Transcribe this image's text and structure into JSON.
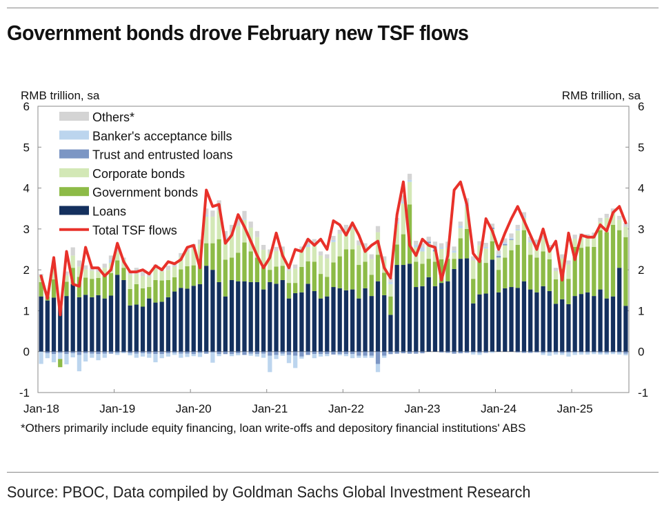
{
  "title": "Government bonds drove February new TSF flows",
  "footnote": "*Others primarily include equity financing, loan write-offs and depository financial institutions' ABS",
  "source": "Source: PBOC, Data compiled by Goldman Sachs Global Investment Research",
  "chart_data": {
    "type": "bar",
    "subtype": "stacked bar with line overlay",
    "y_left_label": "RMB trillion, sa",
    "y_right_label": "RMB trillion, sa",
    "ylim": [
      -1,
      6
    ],
    "yticks": [
      "-1",
      "0",
      "1",
      "2",
      "3",
      "4",
      "5",
      "6"
    ],
    "xtick_labels": [
      "Jan-18",
      "Jan-19",
      "Jan-20",
      "Jan-21",
      "Jan-22",
      "Jan-23",
      "Jan-24",
      "Jan-25"
    ],
    "start_month": "Jan-18",
    "legend_position": "top-left",
    "colors": {
      "others": "#d4d4d4",
      "bankers": "#bcd5ee",
      "trust": "#7c96c4",
      "corporate": "#d3e8b6",
      "government": "#8dbb47",
      "loans": "#14305e",
      "total": "#e8312a"
    },
    "legend": [
      {
        "key": "others",
        "label": "Others*",
        "kind": "bar"
      },
      {
        "key": "bankers",
        "label": "Banker's acceptance bills",
        "kind": "bar"
      },
      {
        "key": "trust",
        "label": "Trust and entrusted loans",
        "kind": "bar"
      },
      {
        "key": "corporate",
        "label": "Corporate bonds",
        "kind": "bar"
      },
      {
        "key": "government",
        "label": "Government bonds",
        "kind": "bar"
      },
      {
        "key": "loans",
        "label": "Loans",
        "kind": "bar"
      },
      {
        "key": "total",
        "label": "Total TSF flows",
        "kind": "line"
      }
    ],
    "series": {
      "loans": [
        1.35,
        1.25,
        1.32,
        1.1,
        1.36,
        1.65,
        1.33,
        1.39,
        1.33,
        1.38,
        1.3,
        1.37,
        1.88,
        1.75,
        1.13,
        1.15,
        1.1,
        1.3,
        1.2,
        1.22,
        1.33,
        1.47,
        1.56,
        1.54,
        1.61,
        1.65,
        2.1,
        2.0,
        1.7,
        1.35,
        1.75,
        1.72,
        1.72,
        1.7,
        1.7,
        1.52,
        1.7,
        1.66,
        1.75,
        1.3,
        1.43,
        1.45,
        1.66,
        1.48,
        1.3,
        1.35,
        1.58,
        1.55,
        1.5,
        1.52,
        1.3,
        1.55,
        1.36,
        1.72,
        1.38,
        0.9,
        2.12,
        2.12,
        2.15,
        1.58,
        1.6,
        1.82,
        1.6,
        1.68,
        1.72,
        2.02,
        2.27,
        2.28,
        1.18,
        1.4,
        1.42,
        2.25,
        1.45,
        1.55,
        1.58,
        1.56,
        1.72,
        1.52,
        1.45,
        1.6,
        1.48,
        1.17,
        1.28,
        1.16,
        1.36,
        1.41,
        1.45,
        1.36,
        1.52,
        1.3,
        1.35,
        2.05,
        1.12
      ],
      "government": [
        0.35,
        0.1,
        0.45,
        -0.2,
        0.35,
        0.4,
        0.5,
        0.42,
        0.45,
        0.42,
        0.55,
        0.55,
        0.35,
        0.3,
        0.4,
        0.5,
        0.45,
        0.28,
        0.55,
        0.52,
        0.42,
        0.35,
        0.45,
        0.55,
        0.5,
        0.62,
        0.55,
        0.65,
        1.05,
        0.9,
        0.55,
        0.7,
        0.95,
        0.75,
        0.6,
        0.55,
        0.3,
        0.42,
        0.35,
        0.38,
        0.25,
        0.62,
        0.55,
        0.72,
        0.6,
        0.48,
        0.6,
        0.78,
        1.0,
        0.98,
        0.82,
        0.65,
        0.52,
        0.65,
        0.55,
        0.45,
        0.5,
        0.75,
        1.45,
        0.62,
        0.55,
        0.45,
        0.6,
        0.58,
        0.55,
        0.25,
        0.5,
        0.72,
        0.6,
        0.85,
        0.75,
        0.45,
        0.55,
        0.75,
        0.9,
        1.05,
        1.25,
        0.85,
        0.85,
        0.85,
        0.78,
        0.6,
        0.75,
        0.62,
        1.2,
        1.13,
        1.12,
        1.2,
        1.45,
        1.62,
        1.75,
        0.92,
        1.68
      ],
      "corporate": [
        0.15,
        0.06,
        0.3,
        0.1,
        0.15,
        0.3,
        0.25,
        0.2,
        0.2,
        0.15,
        0.2,
        0.25,
        0.2,
        0.2,
        0.35,
        0.25,
        0.3,
        0.25,
        0.28,
        0.22,
        0.25,
        0.25,
        0.3,
        0.35,
        0.4,
        0.35,
        0.65,
        0.65,
        0.7,
        0.5,
        0.6,
        0.65,
        0.55,
        0.58,
        0.5,
        0.42,
        0.4,
        0.38,
        0.35,
        0.3,
        0.35,
        0.4,
        0.35,
        0.4,
        0.45,
        0.45,
        0.5,
        0.55,
        0.45,
        0.48,
        0.48,
        0.3,
        0.38,
        0.55,
        0.3,
        0.3,
        0.5,
        0.75,
        0.55,
        0.35,
        0.3,
        0.38,
        0.25,
        0.25,
        0.28,
        0.15,
        0.25,
        0.55,
        0.45,
        0.35,
        0.35,
        0.3,
        0.3,
        0.3,
        0.25,
        0.35,
        0.3,
        0.3,
        0.3,
        0.3,
        0.25,
        0.2,
        0.25,
        0.35,
        0.2,
        0.25,
        0.2,
        0.25,
        0.2,
        0.35,
        0.3,
        0.25,
        0.25
      ],
      "trust": [
        0.0,
        -0.04,
        -0.06,
        -0.03,
        -0.06,
        -0.04,
        -0.08,
        -0.04,
        -0.05,
        -0.06,
        -0.05,
        -0.05,
        -0.03,
        -0.02,
        -0.04,
        -0.05,
        -0.04,
        -0.05,
        -0.06,
        -0.06,
        -0.04,
        -0.03,
        -0.05,
        -0.05,
        -0.06,
        -0.03,
        -0.05,
        -0.02,
        -0.06,
        -0.06,
        -0.06,
        -0.04,
        -0.08,
        -0.05,
        -0.06,
        -0.05,
        -0.1,
        -0.08,
        -0.05,
        -0.08,
        -0.1,
        -0.12,
        -0.08,
        -0.06,
        -0.06,
        -0.06,
        -0.07,
        -0.06,
        -0.06,
        -0.06,
        -0.1,
        -0.1,
        -0.1,
        -0.3,
        -0.1,
        -0.06,
        -0.05,
        -0.04,
        -0.05,
        -0.05,
        -0.04,
        0.04,
        0.04,
        -0.02,
        -0.03,
        -0.05,
        -0.04,
        -0.03,
        -0.02,
        -0.03,
        -0.03,
        0.03,
        0.04,
        0.03,
        0.02,
        -0.02,
        -0.03,
        -0.03,
        -0.02,
        -0.03,
        -0.02,
        -0.02,
        -0.03,
        -0.02,
        -0.02,
        -0.02,
        -0.02,
        -0.02,
        -0.03,
        -0.03,
        -0.02,
        -0.02,
        -0.05
      ],
      "bankers": [
        -0.3,
        -0.12,
        -0.2,
        -0.15,
        -0.25,
        -0.1,
        -0.4,
        -0.2,
        -0.1,
        -0.15,
        -0.1,
        0.08,
        -0.05,
        -0.02,
        -0.05,
        -0.1,
        -0.08,
        -0.1,
        -0.2,
        -0.1,
        -0.08,
        -0.05,
        -0.1,
        -0.08,
        -0.05,
        -0.1,
        0.05,
        -0.25,
        -0.05,
        0.05,
        -0.05,
        -0.05,
        0.02,
        -0.05,
        -0.06,
        -0.1,
        -0.4,
        -0.1,
        -0.05,
        -0.2,
        -0.3,
        -0.05,
        0.05,
        -0.1,
        -0.06,
        -0.05,
        0.05,
        -0.03,
        -0.05,
        -0.1,
        -0.05,
        -0.05,
        -0.05,
        -0.2,
        -0.05,
        0.05,
        0.05,
        0.05,
        0.05,
        0.06,
        0.1,
        0.02,
        0.1,
        0.04,
        0.04,
        0.05,
        0.06,
        0.05,
        -0.05,
        -0.05,
        0.04,
        -0.03,
        0.04,
        0.04,
        0.04,
        0.04,
        0.04,
        0.04,
        0.04,
        -0.05,
        -0.08,
        -0.05,
        -0.05,
        -0.1,
        -0.06,
        -0.05,
        -0.05,
        -0.04,
        -0.04,
        -0.04,
        -0.04,
        -0.05,
        -0.04
      ],
      "others": [
        0.05,
        0.05,
        0.1,
        0.05,
        0.1,
        0.2,
        0.15,
        0.1,
        0.1,
        0.12,
        0.1,
        0.1,
        0.1,
        0.05,
        0.1,
        0.15,
        0.1,
        0.1,
        0.1,
        0.08,
        0.1,
        0.1,
        0.1,
        0.1,
        0.12,
        0.12,
        0.15,
        0.15,
        0.25,
        0.15,
        0.2,
        0.2,
        0.2,
        0.15,
        0.15,
        0.12,
        0.1,
        0.1,
        0.12,
        0.1,
        0.1,
        0.1,
        0.15,
        0.15,
        0.1,
        0.1,
        0.1,
        0.1,
        0.15,
        0.1,
        0.12,
        0.15,
        0.12,
        0.15,
        0.1,
        0.1,
        0.1,
        0.15,
        0.15,
        0.1,
        0.1,
        0.1,
        0.1,
        0.1,
        0.1,
        0.1,
        0.1,
        0.15,
        0.1,
        0.1,
        0.1,
        0.1,
        0.1,
        0.1,
        0.1,
        0.1,
        0.1,
        0.1,
        0.1,
        0.1,
        0.1,
        0.08,
        0.1,
        0.1,
        0.1,
        0.1,
        0.1,
        0.1,
        0.1,
        0.1,
        0.1,
        0.1,
        0.1
      ],
      "total": [
        1.85,
        1.3,
        2.3,
        0.9,
        2.45,
        1.65,
        1.6,
        2.55,
        2.05,
        2.05,
        1.85,
        2.0,
        2.65,
        2.2,
        1.95,
        1.95,
        2.0,
        1.9,
        2.1,
        2.0,
        2.2,
        2.15,
        2.25,
        2.55,
        2.6,
        2.05,
        3.95,
        3.55,
        3.6,
        2.65,
        2.85,
        3.35,
        3.05,
        2.7,
        2.35,
        2.05,
        2.3,
        2.9,
        2.35,
        2.05,
        2.5,
        2.45,
        2.75,
        2.6,
        2.75,
        2.5,
        3.2,
        3.1,
        2.85,
        3.15,
        2.85,
        2.45,
        2.6,
        2.7,
        2.05,
        1.8,
        3.35,
        4.15,
        2.6,
        2.35,
        2.75,
        2.6,
        2.55,
        1.75,
        2.35,
        3.95,
        4.15,
        3.6,
        2.4,
        2.2,
        3.25,
        2.95,
        2.5,
        2.9,
        3.25,
        3.55,
        3.2,
        2.85,
        2.5,
        3.0,
        2.45,
        2.7,
        1.75,
        2.9,
        2.25,
        2.85,
        2.8,
        2.8,
        3.1,
        2.95,
        3.4,
        3.55,
        3.15
      ]
    }
  }
}
